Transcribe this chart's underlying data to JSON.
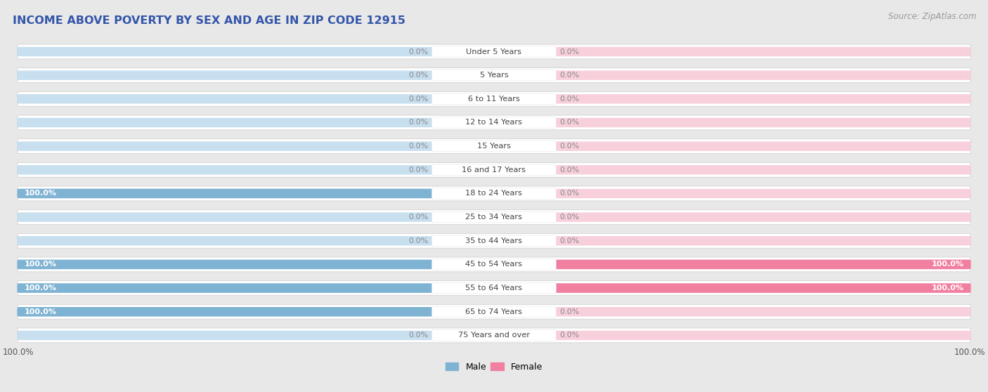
{
  "title": "INCOME ABOVE POVERTY BY SEX AND AGE IN ZIP CODE 12915",
  "source": "Source: ZipAtlas.com",
  "categories": [
    "Under 5 Years",
    "5 Years",
    "6 to 11 Years",
    "12 to 14 Years",
    "15 Years",
    "16 and 17 Years",
    "18 to 24 Years",
    "25 to 34 Years",
    "35 to 44 Years",
    "45 to 54 Years",
    "55 to 64 Years",
    "65 to 74 Years",
    "75 Years and over"
  ],
  "male_values": [
    0.0,
    0.0,
    0.0,
    0.0,
    0.0,
    0.0,
    100.0,
    0.0,
    0.0,
    100.0,
    100.0,
    100.0,
    0.0
  ],
  "female_values": [
    0.0,
    0.0,
    0.0,
    0.0,
    0.0,
    0.0,
    0.0,
    0.0,
    0.0,
    100.0,
    100.0,
    0.0,
    0.0
  ],
  "male_color": "#7fb3d3",
  "female_color": "#f07fa0",
  "male_label": "Male",
  "female_label": "Female",
  "title_color": "#3355aa",
  "source_color": "#999999",
  "bg_color": "#e8e8e8",
  "row_bg_color": "#ffffff",
  "bar_bg_color_male": "#c8dff0",
  "bar_bg_color_female": "#f8d0dc",
  "label_color_inside": "#ffffff",
  "label_color_outside": "#888888",
  "center_label_color": "#444444",
  "xlim": 100
}
